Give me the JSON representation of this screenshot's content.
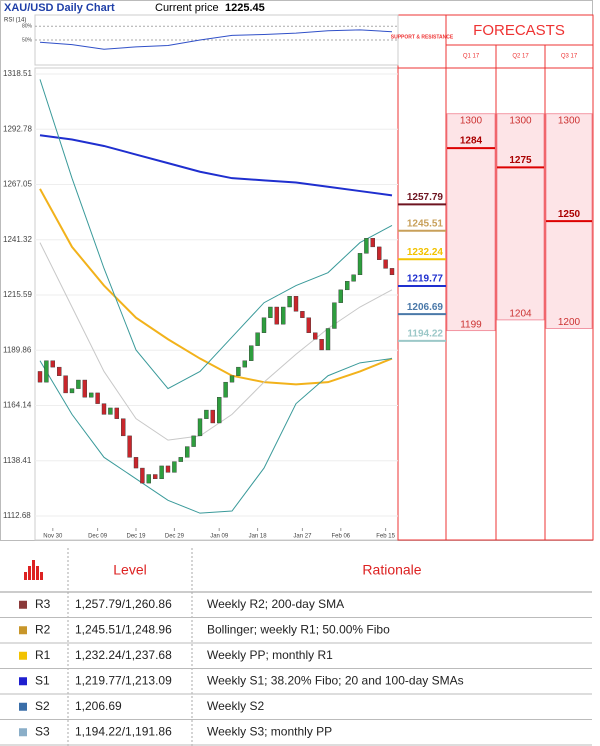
{
  "chart_data": {
    "type": "candlestick",
    "title": "XAU/USD Daily Chart",
    "price_label": "Current price",
    "price": "1225.45",
    "ylim": [
      1112.68,
      1318.51
    ],
    "yticks": [
      1318.51,
      1292.78,
      1267.05,
      1241.32,
      1215.59,
      1189.86,
      1164.14,
      1138.41,
      1112.68
    ],
    "xlim": [
      0,
      55
    ],
    "xticks": [
      {
        "value": 2,
        "label": "Nov 30"
      },
      {
        "value": 9,
        "label": "Dec 09"
      },
      {
        "value": 15,
        "label": "Dec 19"
      },
      {
        "value": 21,
        "label": "Dec 29"
      },
      {
        "value": 28,
        "label": "Jan 09"
      },
      {
        "value": 34,
        "label": "Jan 18"
      },
      {
        "value": 41,
        "label": "Jan 27"
      },
      {
        "value": 47,
        "label": "Feb 06"
      },
      {
        "value": 54,
        "label": "Feb 15"
      }
    ],
    "grid": true,
    "up_color": "#2e9e3e",
    "down_color": "#c8262c",
    "open": [
      1180,
      1175,
      1185,
      1182,
      1178,
      1170,
      1172,
      1176,
      1168,
      1170,
      1165,
      1160,
      1163,
      1158,
      1150,
      1140,
      1135,
      1128,
      1132,
      1130,
      1136,
      1133,
      1138,
      1140,
      1145,
      1150,
      1158,
      1162,
      1156,
      1168,
      1175,
      1178,
      1182,
      1185,
      1192,
      1198,
      1205,
      1210,
      1202,
      1210,
      1215,
      1208,
      1205,
      1198,
      1195,
      1190,
      1200,
      1212,
      1218,
      1222,
      1225,
      1235,
      1242,
      1238,
      1232,
      1228
    ],
    "close": [
      1175,
      1185,
      1182,
      1178,
      1170,
      1172,
      1176,
      1168,
      1170,
      1165,
      1160,
      1163,
      1158,
      1150,
      1140,
      1135,
      1128,
      1132,
      1130,
      1136,
      1133,
      1138,
      1140,
      1145,
      1150,
      1158,
      1162,
      1156,
      1168,
      1175,
      1178,
      1182,
      1185,
      1192,
      1198,
      1205,
      1210,
      1202,
      1210,
      1215,
      1208,
      1205,
      1198,
      1195,
      1190,
      1200,
      1212,
      1218,
      1222,
      1225,
      1235,
      1242,
      1238,
      1232,
      1228,
      1225
    ],
    "lines": [
      {
        "color": "#1f2fcf",
        "width": 2,
        "x": [
          0,
          5,
          10,
          15,
          20,
          25,
          30,
          35,
          40,
          45,
          50,
          55
        ],
        "values": [
          1290,
          1288,
          1285,
          1281,
          1277,
          1273,
          1270,
          1269,
          1268,
          1266,
          1264,
          1262
        ]
      },
      {
        "color": "#f2b21b",
        "width": 2,
        "x": [
          0,
          5,
          10,
          15,
          20,
          25,
          30,
          35,
          40,
          45,
          50,
          55
        ],
        "values": [
          1265,
          1238,
          1220,
          1205,
          1195,
          1186,
          1178,
          1175,
          1174,
          1175,
          1180,
          1186
        ]
      },
      {
        "color": "#3a9a9a",
        "width": 1,
        "x": [
          0,
          5,
          10,
          15,
          20,
          25,
          30,
          35,
          40,
          45,
          50,
          55
        ],
        "values": [
          1316,
          1270,
          1228,
          1190,
          1172,
          1180,
          1196,
          1212,
          1220,
          1226,
          1240,
          1248
        ]
      },
      {
        "color": "#3a9a9a",
        "width": 1,
        "x": [
          0,
          5,
          10,
          15,
          20,
          25,
          30,
          35,
          40,
          45,
          50,
          55
        ],
        "values": [
          1185,
          1160,
          1140,
          1130,
          1120,
          1114,
          1115,
          1135,
          1165,
          1178,
          1184,
          1186
        ]
      },
      {
        "color": "#c8c8c8",
        "width": 1,
        "x": [
          0,
          5,
          10,
          15,
          20,
          25,
          30,
          35,
          40,
          45,
          50,
          55
        ],
        "values": [
          1240,
          1210,
          1180,
          1158,
          1148,
          1150,
          1160,
          1175,
          1188,
          1200,
          1210,
          1218
        ]
      }
    ],
    "rsi": {
      "label": "RSI (14)",
      "ylim": [
        0,
        100
      ],
      "yticks": [
        {
          "value": 80,
          "label": "80%"
        },
        {
          "value": 50,
          "label": "50%"
        }
      ],
      "x": [
        0,
        5,
        10,
        15,
        20,
        25,
        30,
        35,
        40,
        45,
        50,
        55
      ],
      "values": [
        45,
        40,
        30,
        35,
        38,
        50,
        60,
        62,
        65,
        70,
        72,
        68
      ],
      "color": "#3050c8"
    },
    "levels_title": "SUPPORT & RESISTANCE",
    "levels": [
      {
        "value": 1257.79,
        "color": "#6e1420"
      },
      {
        "value": 1245.51,
        "color": "#c8a05a"
      },
      {
        "value": 1232.24,
        "color": "#f2c200"
      },
      {
        "value": 1219.77,
        "color": "#1f2fcf"
      },
      {
        "value": 1206.69,
        "color": "#4a78a8"
      },
      {
        "value": 1194.22,
        "color": "#9cc8c8"
      }
    ],
    "forecasts_title": "FORECASTS",
    "forecasts": [
      {
        "quarter": "Q1 17",
        "high": 1300,
        "mid": 1284,
        "low": 1199
      },
      {
        "quarter": "Q2 17",
        "high": 1300,
        "mid": 1275,
        "low": 1204
      },
      {
        "quarter": "Q3 17",
        "high": 1300,
        "mid": 1250,
        "low": 1200
      }
    ]
  },
  "table": {
    "headers": [
      "Level",
      "Rationale"
    ],
    "rows": [
      {
        "name": "R3",
        "color": "#8b3a3a",
        "level": "1,257.79/1,260.86",
        "rationale": "Weekly R2; 200-day SMA"
      },
      {
        "name": "R2",
        "color": "#c8962a",
        "level": "1,245.51/1,248.96",
        "rationale": "Bollinger; weekly R1; 50.00% Fibo"
      },
      {
        "name": "R1",
        "color": "#f2c200",
        "level": "1,232.24/1,237.68",
        "rationale": "Weekly PP; monthly R1"
      },
      {
        "name": "S1",
        "color": "#1f1fcf",
        "level": "1,219.77/1,213.09",
        "rationale": "Weekly S1; 38.20% Fibo; 20 and 100-day SMAs"
      },
      {
        "name": "S2",
        "color": "#3a6ea8",
        "level": "1,206.69",
        "rationale": "Weekly S2"
      },
      {
        "name": "S3",
        "color": "#8aaec8",
        "level": "1,194.22/1,191.86",
        "rationale": "Weekly S3; monthly PP"
      }
    ]
  }
}
